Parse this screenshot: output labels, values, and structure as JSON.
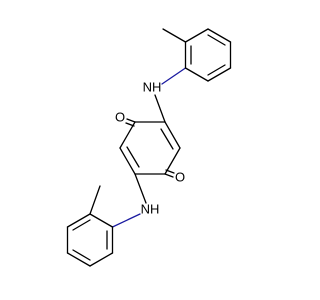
{
  "atoms": {
    "o_left": "O",
    "o_right": "O",
    "nh_top": "NH",
    "nh_bottom": "NH"
  }
}
